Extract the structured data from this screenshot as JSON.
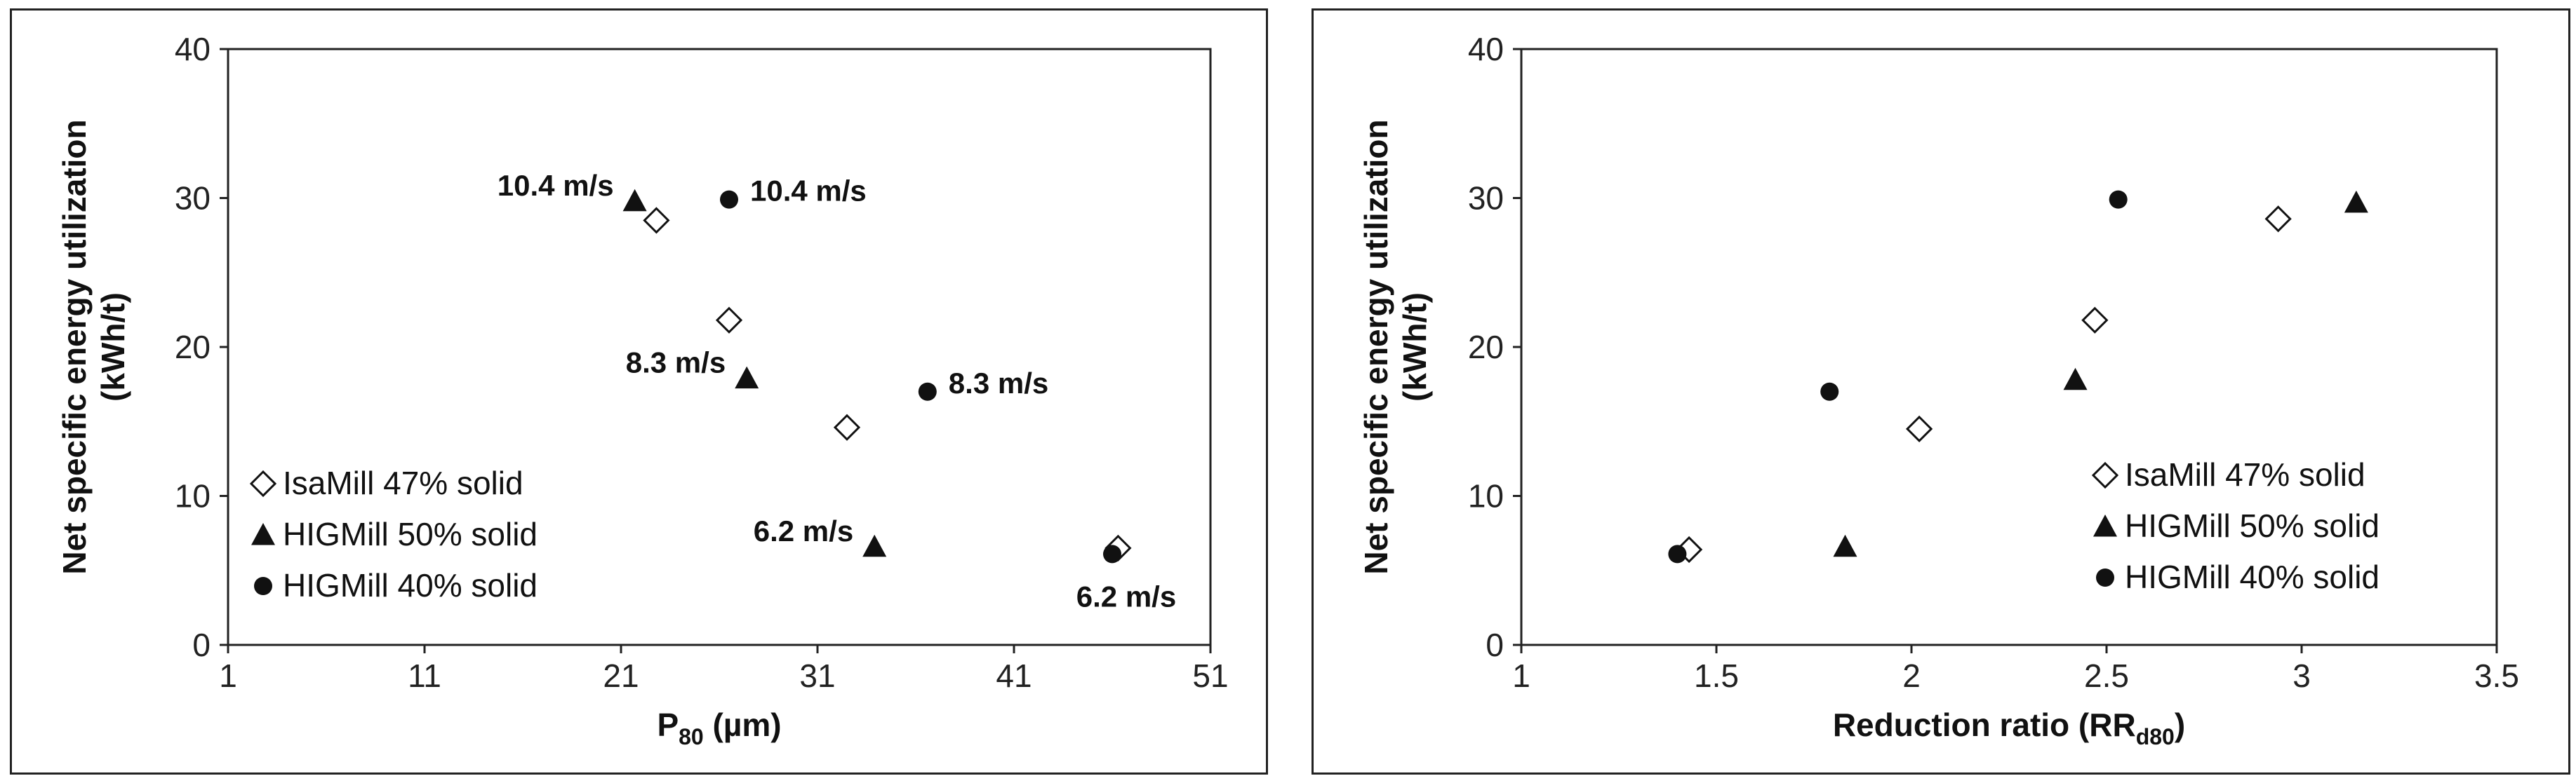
{
  "chart_data": [
    {
      "type": "scatter",
      "xlabel": "P",
      "xlabel_sub": "80",
      "xlabel_unit": " (µm)",
      "ylabel": "Net specific energy utilization",
      "ylabel_unit": "(kWh/t)",
      "xlim": [
        1,
        51
      ],
      "ylim": [
        0,
        40
      ],
      "xticks": [
        1,
        11,
        21,
        31,
        41,
        51
      ],
      "yticks": [
        0,
        10,
        20,
        30,
        40
      ],
      "legend_position": "bottom-left",
      "series": [
        {
          "name": "IsaMill 47% solid",
          "marker": "diamond-open",
          "points": [
            [
              22.8,
              28.5
            ],
            [
              26.5,
              21.8
            ],
            [
              32.5,
              14.6
            ],
            [
              46.3,
              6.5
            ]
          ]
        },
        {
          "name": "HIGMill 50% solid",
          "marker": "triangle",
          "points": [
            [
              21.7,
              29.8
            ],
            [
              27.4,
              17.9
            ],
            [
              33.9,
              6.6
            ]
          ]
        },
        {
          "name": "HIGMill 40% solid",
          "marker": "circle",
          "points": [
            [
              26.5,
              29.9
            ],
            [
              36.6,
              17.0
            ],
            [
              46.0,
              6.1
            ]
          ]
        }
      ],
      "annotations": [
        {
          "text": "10.4 m/s",
          "x": 21.7,
          "y": 29.8,
          "side": "left"
        },
        {
          "text": "10.4 m/s",
          "x": 26.5,
          "y": 29.9,
          "side": "right"
        },
        {
          "text": "8.3 m/s",
          "x": 27.4,
          "y": 17.9,
          "side": "left"
        },
        {
          "text": "8.3 m/s",
          "x": 36.6,
          "y": 17.0,
          "side": "right"
        },
        {
          "text": "6.2 m/s",
          "x": 33.9,
          "y": 6.6,
          "side": "left"
        },
        {
          "text": "6.2 m/s",
          "x": 46.0,
          "y": 6.1,
          "side": "below"
        }
      ]
    },
    {
      "type": "scatter",
      "xlabel": "Reduction ratio (RR",
      "xlabel_sub": "d80",
      "xlabel_unit": ")",
      "ylabel": "Net specific energy utilization",
      "ylabel_unit": "(kWh/t)",
      "xlim": [
        1,
        3.5
      ],
      "ylim": [
        0,
        40
      ],
      "xticks": [
        1,
        1.5,
        2,
        2.5,
        3,
        3.5
      ],
      "yticks": [
        0,
        10,
        20,
        30,
        40
      ],
      "legend_position": "bottom-right",
      "series": [
        {
          "name": "IsaMill 47% solid",
          "marker": "diamond-open",
          "points": [
            [
              1.43,
              6.4
            ],
            [
              2.02,
              14.5
            ],
            [
              2.47,
              21.8
            ],
            [
              2.94,
              28.6
            ]
          ]
        },
        {
          "name": "HIGMill 50% solid",
          "marker": "triangle",
          "points": [
            [
              1.83,
              6.6
            ],
            [
              2.42,
              17.8
            ],
            [
              3.14,
              29.7
            ]
          ]
        },
        {
          "name": "HIGMill 40% solid",
          "marker": "circle",
          "points": [
            [
              1.4,
              6.1
            ],
            [
              1.79,
              17.0
            ],
            [
              2.53,
              29.9
            ]
          ]
        }
      ],
      "annotations": []
    }
  ]
}
